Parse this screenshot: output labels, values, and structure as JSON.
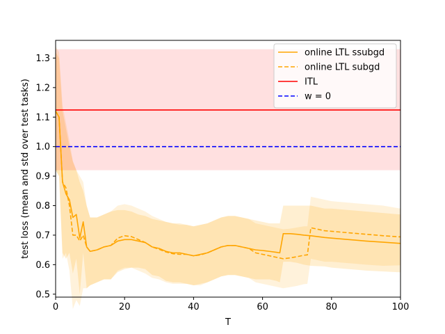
{
  "chart_data": {
    "type": "line",
    "title": "",
    "xlabel": "T",
    "ylabel": "test loss (mean and std over test tasks)",
    "xlim": [
      0,
      100
    ],
    "ylim": [
      0.49,
      1.36
    ],
    "xticks": [
      "0",
      "20",
      "40",
      "60",
      "80",
      "100"
    ],
    "yticks": [
      "0.5",
      "0.6",
      "0.7",
      "0.8",
      "0.9",
      "1.0",
      "1.1",
      "1.2",
      "1.3"
    ],
    "grid": false,
    "legend_position": "top-right",
    "series": [
      {
        "name": "online LTL ssubgd",
        "color": "#ffa500",
        "style": "solid",
        "x": [
          0,
          1,
          2,
          3,
          4,
          5,
          6,
          7,
          8,
          9,
          10,
          12,
          14,
          16,
          18,
          20,
          22,
          24,
          26,
          28,
          30,
          32,
          34,
          36,
          38,
          40,
          42,
          44,
          46,
          48,
          50,
          52,
          54,
          56,
          58,
          60,
          62,
          64,
          65,
          66,
          68,
          70,
          72,
          74,
          76,
          78,
          80,
          85,
          90,
          95,
          100
        ],
        "y": [
          1.12,
          1.1,
          0.88,
          0.84,
          0.82,
          0.76,
          0.77,
          0.69,
          0.745,
          0.66,
          0.645,
          0.65,
          0.66,
          0.665,
          0.68,
          0.685,
          0.685,
          0.68,
          0.675,
          0.66,
          0.655,
          0.645,
          0.64,
          0.64,
          0.635,
          0.63,
          0.635,
          0.64,
          0.65,
          0.66,
          0.665,
          0.665,
          0.66,
          0.655,
          0.65,
          0.648,
          0.645,
          0.642,
          0.64,
          0.705,
          0.705,
          0.703,
          0.7,
          0.698,
          0.695,
          0.692,
          0.69,
          0.685,
          0.68,
          0.676,
          0.672
        ],
        "std_upper": [
          1.32,
          1.3,
          1.12,
          1.06,
          1.0,
          0.95,
          0.92,
          0.88,
          0.85,
          0.8,
          0.76,
          0.76,
          0.77,
          0.78,
          0.785,
          0.785,
          0.78,
          0.77,
          0.765,
          0.755,
          0.75,
          0.745,
          0.74,
          0.74,
          0.735,
          0.73,
          0.735,
          0.74,
          0.75,
          0.76,
          0.765,
          0.765,
          0.76,
          0.755,
          0.75,
          0.745,
          0.74,
          0.74,
          0.74,
          0.8,
          0.8,
          0.8,
          0.8,
          0.8,
          0.795,
          0.79,
          0.79,
          0.785,
          0.78,
          0.775,
          0.77
        ],
        "std_lower": [
          0.92,
          0.9,
          0.64,
          0.62,
          0.64,
          0.57,
          0.62,
          0.5,
          0.64,
          0.52,
          0.53,
          0.54,
          0.55,
          0.55,
          0.575,
          0.585,
          0.59,
          0.59,
          0.585,
          0.565,
          0.56,
          0.545,
          0.54,
          0.54,
          0.535,
          0.53,
          0.535,
          0.54,
          0.55,
          0.56,
          0.565,
          0.565,
          0.56,
          0.555,
          0.55,
          0.55,
          0.55,
          0.545,
          0.54,
          0.61,
          0.61,
          0.606,
          0.6,
          0.596,
          0.595,
          0.594,
          0.59,
          0.585,
          0.58,
          0.577,
          0.574
        ]
      },
      {
        "name": "online LTL subgd",
        "color": "#ffa500",
        "style": "dashed",
        "x": [
          0,
          1,
          2,
          3,
          4,
          5,
          6,
          7,
          8,
          9,
          10,
          12,
          14,
          16,
          18,
          20,
          22,
          24,
          26,
          28,
          30,
          32,
          34,
          36,
          38,
          40,
          42,
          44,
          46,
          48,
          50,
          52,
          54,
          56,
          58,
          60,
          62,
          64,
          66,
          68,
          70,
          72,
          73,
          74,
          76,
          78,
          80,
          85,
          90,
          95,
          100
        ],
        "y": [
          1.12,
          1.1,
          0.88,
          0.86,
          0.8,
          0.7,
          0.7,
          0.68,
          0.7,
          0.66,
          0.645,
          0.65,
          0.66,
          0.665,
          0.69,
          0.698,
          0.695,
          0.685,
          0.675,
          0.66,
          0.652,
          0.643,
          0.637,
          0.635,
          0.635,
          0.63,
          0.633,
          0.64,
          0.65,
          0.66,
          0.665,
          0.665,
          0.66,
          0.655,
          0.64,
          0.635,
          0.63,
          0.625,
          0.62,
          0.623,
          0.627,
          0.632,
          0.633,
          0.725,
          0.72,
          0.715,
          0.713,
          0.708,
          0.703,
          0.698,
          0.694
        ],
        "std_upper": [
          1.34,
          1.32,
          1.14,
          1.08,
          1.02,
          0.95,
          0.92,
          0.9,
          0.88,
          0.8,
          0.76,
          0.76,
          0.77,
          0.78,
          0.8,
          0.805,
          0.8,
          0.79,
          0.78,
          0.765,
          0.755,
          0.745,
          0.74,
          0.735,
          0.735,
          0.73,
          0.735,
          0.74,
          0.75,
          0.76,
          0.765,
          0.765,
          0.76,
          0.755,
          0.74,
          0.735,
          0.73,
          0.725,
          0.72,
          0.722,
          0.726,
          0.73,
          0.73,
          0.83,
          0.825,
          0.82,
          0.815,
          0.81,
          0.805,
          0.8,
          0.79
        ],
        "std_lower": [
          0.92,
          0.9,
          0.62,
          0.64,
          0.58,
          0.45,
          0.48,
          0.46,
          0.52,
          0.52,
          0.53,
          0.54,
          0.55,
          0.55,
          0.58,
          0.59,
          0.59,
          0.58,
          0.57,
          0.555,
          0.55,
          0.54,
          0.535,
          0.535,
          0.535,
          0.53,
          0.53,
          0.54,
          0.55,
          0.56,
          0.565,
          0.565,
          0.56,
          0.555,
          0.54,
          0.535,
          0.53,
          0.525,
          0.52,
          0.524,
          0.528,
          0.534,
          0.535,
          0.62,
          0.615,
          0.61,
          0.61,
          0.605,
          0.6,
          0.596,
          0.598
        ]
      },
      {
        "name": "ITL",
        "color": "#ff0000",
        "style": "solid",
        "x": [
          0,
          100
        ],
        "y": [
          1.124,
          1.124
        ],
        "std_upper": [
          1.33,
          1.33
        ],
        "std_lower": [
          0.92,
          0.92
        ]
      },
      {
        "name": "w = 0",
        "color": "#0000ff",
        "style": "dashed",
        "x": [
          0,
          100
        ],
        "y": [
          1.0,
          1.0
        ]
      }
    ]
  }
}
